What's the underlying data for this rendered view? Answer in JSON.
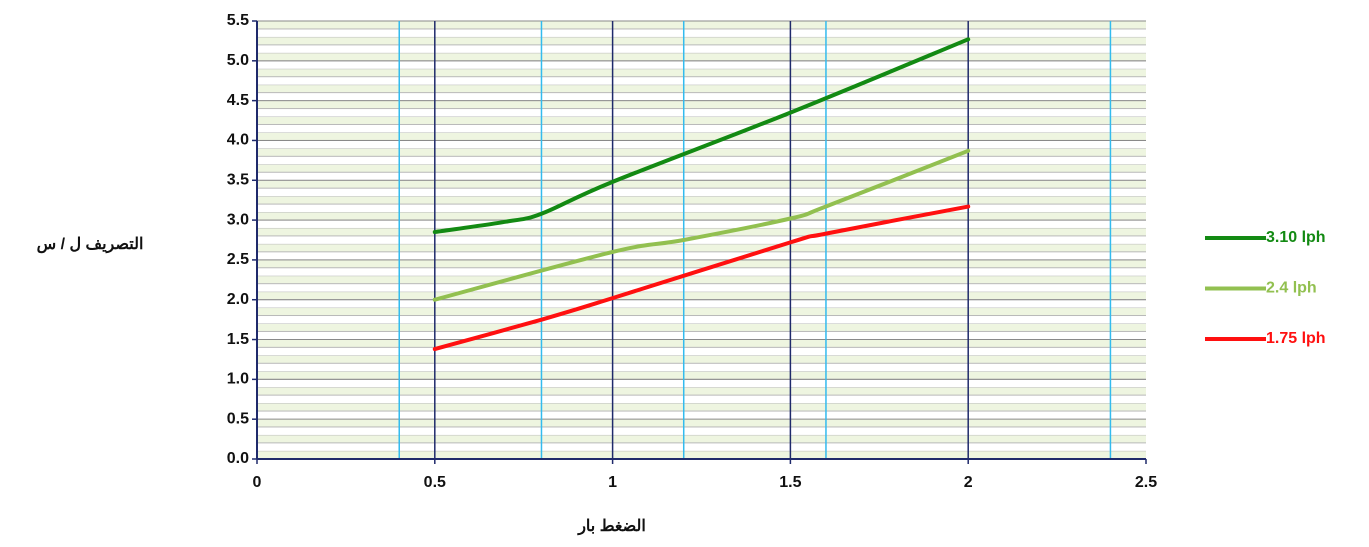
{
  "chart_data": {
    "type": "line",
    "xlabel": "الضغط بار",
    "ylabel": "التصريف ل / س",
    "xlim": [
      0,
      2.5
    ],
    "xticks": [
      0,
      0.5,
      1,
      1.5,
      2,
      2.5
    ],
    "xgrid_minor": [
      0.4,
      0.8,
      1.2,
      1.6,
      2.4
    ],
    "ylim": [
      0,
      5.5
    ],
    "yticks": [
      {
        "value": 0,
        "label": "0.0"
      },
      0.5,
      {
        "value": 1,
        "label": "1.0"
      },
      1.5,
      {
        "value": 2,
        "label": "2.0"
      },
      2.5,
      {
        "value": 3,
        "label": "3.0"
      },
      3.5,
      {
        "value": 4,
        "label": "4.0"
      },
      4.5,
      {
        "value": 5,
        "label": "5.0"
      },
      5.5
    ],
    "grid": true,
    "legend": "right",
    "series": [
      {
        "name": "3.10 lph",
        "color": "#138a13",
        "x": [
          0.5,
          0.7,
          0.8,
          1.0,
          1.5,
          2.0
        ],
        "values": [
          2.85,
          2.98,
          3.08,
          3.48,
          4.35,
          5.27
        ]
      },
      {
        "name": "2.4 lph",
        "color": "#92c050",
        "x": [
          0.5,
          1.0,
          1.2,
          1.5,
          1.6,
          2.0
        ],
        "values": [
          2.0,
          2.6,
          2.75,
          3.02,
          3.17,
          3.87
        ]
      },
      {
        "name": "1.75 lph",
        "color": "#ff1010",
        "x": [
          0.5,
          0.8,
          1.0,
          1.5,
          1.6,
          2.0
        ],
        "values": [
          1.38,
          1.75,
          2.02,
          2.72,
          2.83,
          3.17
        ]
      }
    ]
  }
}
